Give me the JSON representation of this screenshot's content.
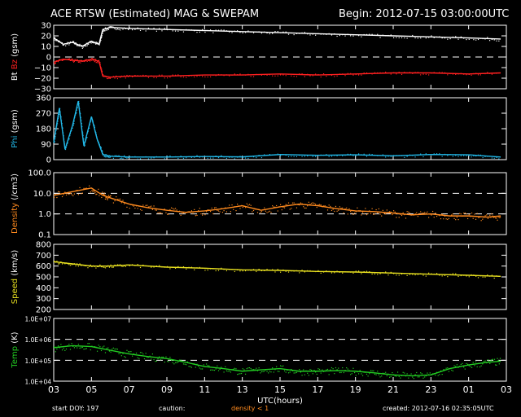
{
  "header": {
    "title": "ACE RTSW (Estimated) MAG & SWEPAM",
    "begin_label": "Begin: 2012-07-15 03:00:00UTC"
  },
  "footer": {
    "start_doy": "start DOY: 197",
    "caution": "caution:",
    "density_note": "density < 1",
    "created": "created: 2012-07-16 02:35:05UTC"
  },
  "colors": {
    "bt": "#ffffff",
    "bz": "#ff2020",
    "phi": "#22b8e8",
    "density": "#ff8a1e",
    "speed": "#e8e020",
    "temp": "#22cc22",
    "caution_note": "#ff8a1e"
  },
  "chart_data": {
    "type": "scatter",
    "x_axis": {
      "label": "UTC(hours)",
      "ticks": [
        "03",
        "05",
        "07",
        "09",
        "11",
        "13",
        "15",
        "17",
        "19",
        "21",
        "23",
        "01",
        "03"
      ]
    },
    "panels": [
      {
        "key": "mag",
        "ylabel_parts": [
          {
            "text": "Bt",
            "color": "#ffffff"
          },
          {
            "text": " ",
            "color": "#ffffff"
          },
          {
            "text": "Bz",
            "color": "#ff2020"
          },
          {
            "text": " (gsm)",
            "color": "#ffffff"
          }
        ],
        "scale": "linear",
        "ylim": [
          -30,
          30
        ],
        "ticks": [
          30,
          20,
          10,
          0,
          -10,
          -20,
          -30
        ],
        "tick_labels": [
          "30",
          "20",
          "10",
          "0",
          "−10",
          "−20",
          "−30"
        ],
        "dashed": [
          0
        ],
        "series": [
          {
            "name": "Bt",
            "color": "#ffffff",
            "x": [
              0,
              0.5,
              1,
              1.5,
              2,
              2.4,
              2.6,
              3,
              4,
              6,
              8,
              10,
              12,
              14,
              16,
              18,
              20,
              22,
              23.7
            ],
            "y": [
              18,
              12,
              14,
              10,
              15,
              12,
              26,
              28,
              27,
              26,
              25,
              24,
              23,
              22,
              21,
              20,
              19,
              18,
              17
            ]
          },
          {
            "name": "Bz",
            "color": "#ff2020",
            "x": [
              0,
              0.5,
              1,
              1.5,
              2,
              2.4,
              2.6,
              3,
              4,
              6,
              8,
              10,
              12,
              14,
              16,
              18,
              20,
              22,
              23.7
            ],
            "y": [
              -5,
              -2,
              -3,
              -4,
              -2,
              -4,
              -18,
              -19,
              -18,
              -18,
              -17,
              -17,
              -16,
              -17,
              -16,
              -15,
              -15,
              -16,
              -15
            ]
          }
        ]
      },
      {
        "key": "phi",
        "ylabel_parts": [
          {
            "text": "Phi",
            "color": "#22b8e8"
          },
          {
            "text": " (gsm)",
            "color": "#ffffff"
          }
        ],
        "scale": "linear",
        "ylim": [
          0,
          360
        ],
        "ticks": [
          360,
          270,
          180,
          90,
          0
        ],
        "tick_labels": [
          "360",
          "270",
          "180",
          "90",
          "0"
        ],
        "dashed": [],
        "series": [
          {
            "name": "Phi",
            "color": "#22b8e8",
            "x": [
              0,
              0.3,
              0.6,
              1,
              1.3,
              1.6,
              2,
              2.3,
              2.6,
              3,
              4,
              6,
              8,
              10,
              12,
              14,
              16,
              18,
              20,
              22,
              23.7
            ],
            "y": [
              100,
              300,
              60,
              200,
              340,
              80,
              250,
              120,
              30,
              20,
              15,
              15,
              18,
              16,
              30,
              25,
              28,
              22,
              30,
              28,
              15
            ]
          }
        ]
      },
      {
        "key": "density",
        "ylabel_parts": [
          {
            "text": "Density",
            "color": "#ff8a1e"
          },
          {
            "text": " (/cm3)",
            "color": "#ffffff"
          }
        ],
        "scale": "log",
        "ylim": [
          0.1,
          100
        ],
        "ticks": [
          100,
          10,
          1,
          0.1
        ],
        "tick_labels": [
          "100.0",
          "10.0",
          "1.0",
          "0.1"
        ],
        "dashed": [
          10,
          1
        ],
        "series": [
          {
            "name": "Density",
            "color": "#ff8a1e",
            "x": [
              0,
              1,
              2,
              2.6,
              3,
              4,
              5,
              6,
              7,
              8,
              9,
              10,
              11,
              12,
              13,
              14,
              15,
              16,
              17,
              18,
              19,
              20,
              21,
              22,
              23,
              23.7
            ],
            "y": [
              8,
              12,
              18,
              8,
              6,
              3,
              2,
              1.5,
              1.2,
              1.4,
              1.8,
              2.5,
              1.5,
              2.2,
              3,
              2.5,
              1.8,
              1.4,
              1.3,
              1.1,
              0.9,
              1.0,
              0.8,
              0.8,
              0.7,
              0.8
            ]
          }
        ]
      },
      {
        "key": "speed",
        "ylabel_parts": [
          {
            "text": "Speed",
            "color": "#e8e020"
          },
          {
            "text": " (km/s)",
            "color": "#ffffff"
          }
        ],
        "scale": "linear",
        "ylim": [
          200,
          800
        ],
        "ticks": [
          800,
          700,
          600,
          500,
          400,
          300,
          200
        ],
        "tick_labels": [
          "800",
          "700",
          "600",
          "500",
          "400",
          "300",
          "200"
        ],
        "dashed": [],
        "series": [
          {
            "name": "Speed",
            "color": "#e8e020",
            "x": [
              0,
              1,
              2,
              3,
              4,
              6,
              8,
              10,
              12,
              14,
              16,
              18,
              20,
              22,
              23.7
            ],
            "y": [
              640,
              620,
              600,
              600,
              610,
              590,
              580,
              565,
              560,
              550,
              545,
              535,
              525,
              515,
              505
            ]
          }
        ]
      },
      {
        "key": "temp",
        "ylabel_parts": [
          {
            "text": "Temp",
            "color": "#22cc22"
          },
          {
            "text": " (K)",
            "color": "#ffffff"
          }
        ],
        "scale": "log",
        "ylim": [
          10000,
          10000000
        ],
        "ticks": [
          10000000,
          1000000,
          100000,
          10000
        ],
        "tick_labels": [
          "1.0E+07",
          "1.0E+06",
          "1.0E+05",
          "1.0E+04"
        ],
        "dashed": [
          1000000,
          100000
        ],
        "series": [
          {
            "name": "Temp",
            "color": "#22cc22",
            "x": [
              0,
              1,
              2,
              3,
              4,
              5,
              6,
              7,
              8,
              9,
              10,
              11,
              12,
              13,
              14,
              15,
              16,
              17,
              18,
              19,
              20,
              21,
              22,
              23,
              23.7
            ],
            "y": [
              400000,
              500000,
              450000,
              300000,
              200000,
              150000,
              120000,
              80000,
              50000,
              40000,
              30000,
              35000,
              40000,
              30000,
              30000,
              32000,
              30000,
              25000,
              20000,
              18000,
              20000,
              40000,
              60000,
              80000,
              90000
            ]
          }
        ]
      }
    ]
  }
}
